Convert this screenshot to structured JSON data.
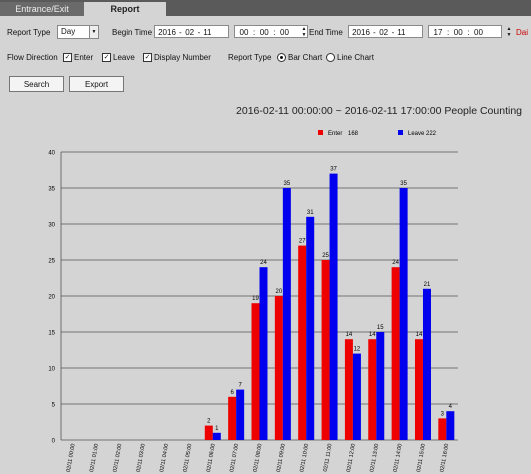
{
  "tabs": [
    {
      "label": "Entrance/Exit"
    },
    {
      "label": "Report"
    }
  ],
  "form": {
    "report_type_label": "Report Type",
    "report_type_value": "Day",
    "begin_label": "Begin Time",
    "begin": {
      "year": "2016",
      "month": "02",
      "day": "11",
      "hour": "00",
      "min": "00",
      "sec": "00"
    },
    "end_label": "End Time",
    "end": {
      "year": "2016",
      "month": "02",
      "day": "11",
      "hour": "17",
      "min": "00",
      "sec": "00"
    },
    "truncated_label": "Dai",
    "flow_label": "Flow Direction",
    "enter_label": "Enter",
    "leave_label": "Leave",
    "display_number_label": "Display Number",
    "report_type2_label": "Report Type",
    "bar_chart_label": "Bar Chart",
    "line_chart_label": "Line Chart",
    "enter_checked": true,
    "leave_checked": true,
    "display_number_checked": true,
    "chart_type_selected": "Bar Chart"
  },
  "buttons": {
    "search": "Search",
    "export": "Export"
  },
  "chart_data": {
    "type": "bar",
    "title": "2016-02-11 00:00:00 ~ 2016-02-11 17:00:00 People Counting",
    "categories": [
      "02/11 00:00",
      "02/11 01:00",
      "02/11 02:00",
      "02/11 03:00",
      "02/11 04:00",
      "02/11 05:00",
      "02/11 06:00",
      "02/11 07:00",
      "02/11 08:00",
      "02/11 09:00",
      "02/11 10:00",
      "02/11 11:00",
      "02/11 12:00",
      "02/11 13:00",
      "02/11 14:00",
      "02/11 15:00",
      "02/11 16:00"
    ],
    "series": [
      {
        "name": "Enter",
        "total": "168",
        "color": "#ee0000",
        "values": [
          0,
          0,
          0,
          0,
          0,
          0,
          2,
          6,
          19,
          20,
          27,
          25,
          14,
          14,
          24,
          14,
          3
        ]
      },
      {
        "name": "Leave",
        "total": "222",
        "color": "#0000ee",
        "values": [
          0,
          0,
          0,
          0,
          0,
          0,
          1,
          7,
          24,
          35,
          31,
          37,
          12,
          15,
          35,
          21,
          4
        ]
      }
    ],
    "ylim": [
      0,
      40
    ],
    "yticks": [
      0,
      5,
      10,
      15,
      20,
      25,
      30,
      35,
      40
    ],
    "grid": true,
    "legend_position": "top-right"
  }
}
